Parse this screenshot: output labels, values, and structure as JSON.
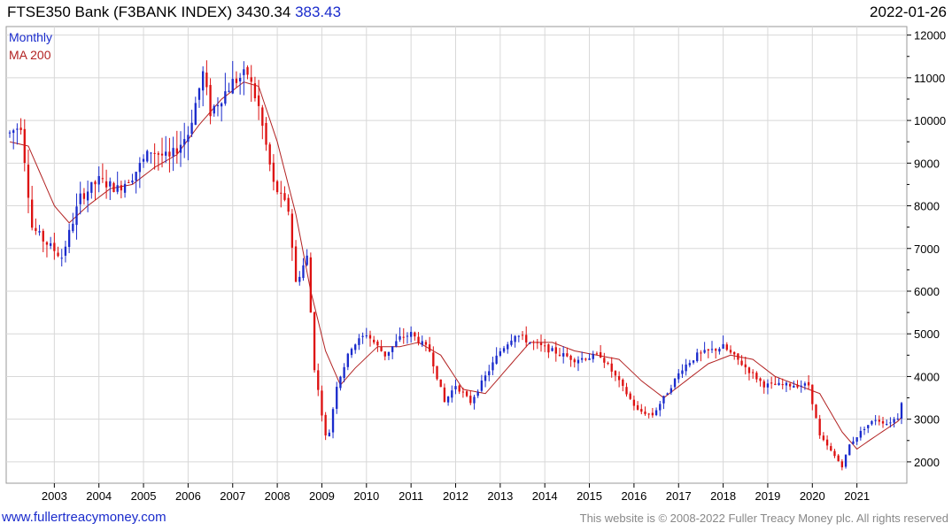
{
  "header": {
    "title": "FTSE350 Bank (F3BANK INDEX)",
    "last": "3430.34",
    "change": "383.43",
    "date": "2022-01-26"
  },
  "legend": {
    "period": "Monthly",
    "ma": "MA 200"
  },
  "footer": {
    "link": "www.fullertreacymoney.com",
    "copyright": "This website is © 2008-2022 Fuller Treacy Money plc. All rights reserved"
  },
  "colors": {
    "up": "#1a2bcc",
    "down": "#dd1111",
    "ma": "#b22222",
    "grid": "#d8d8d8"
  },
  "chart_data": {
    "type": "candlestick",
    "x_tick_labels": [
      "2003",
      "2004",
      "2005",
      "2006",
      "2007",
      "2008",
      "2009",
      "2010",
      "2011",
      "2012",
      "2013",
      "2014",
      "2015",
      "2016",
      "2017",
      "2018",
      "2019",
      "2020",
      "2021"
    ],
    "y_tick_labels": [
      "2000",
      "3000",
      "4000",
      "5000",
      "6000",
      "7000",
      "8000",
      "9000",
      "10000",
      "11000",
      "12000"
    ],
    "ylim": [
      1500,
      12200
    ],
    "xlim": [
      "2002-01",
      "2022-01"
    ],
    "grid": true,
    "price_anchors": [
      {
        "date": "2002-01",
        "value": 9700
      },
      {
        "date": "2002-04",
        "value": 9900
      },
      {
        "date": "2002-07",
        "value": 7500
      },
      {
        "date": "2002-10",
        "value": 7200
      },
      {
        "date": "2003-03",
        "value": 6800
      },
      {
        "date": "2003-08",
        "value": 8200
      },
      {
        "date": "2004-01",
        "value": 8600
      },
      {
        "date": "2004-06",
        "value": 8400
      },
      {
        "date": "2004-10",
        "value": 8700
      },
      {
        "date": "2005-03",
        "value": 9300
      },
      {
        "date": "2005-08",
        "value": 9100
      },
      {
        "date": "2006-01",
        "value": 9700
      },
      {
        "date": "2006-05",
        "value": 11100
      },
      {
        "date": "2006-07",
        "value": 10200
      },
      {
        "date": "2007-01",
        "value": 10900
      },
      {
        "date": "2007-05",
        "value": 11100
      },
      {
        "date": "2007-08",
        "value": 10300
      },
      {
        "date": "2007-12",
        "value": 8500
      },
      {
        "date": "2008-04",
        "value": 7900
      },
      {
        "date": "2008-06",
        "value": 6200
      },
      {
        "date": "2008-09",
        "value": 6800
      },
      {
        "date": "2008-11",
        "value": 4200
      },
      {
        "date": "2009-02",
        "value": 2600
      },
      {
        "date": "2009-03",
        "value": 2700
      },
      {
        "date": "2009-05",
        "value": 3800
      },
      {
        "date": "2009-09",
        "value": 4700
      },
      {
        "date": "2010-01",
        "value": 5000
      },
      {
        "date": "2010-06",
        "value": 4500
      },
      {
        "date": "2010-10",
        "value": 4900
      },
      {
        "date": "2011-01",
        "value": 5000
      },
      {
        "date": "2011-06",
        "value": 4600
      },
      {
        "date": "2011-10",
        "value": 3400
      },
      {
        "date": "2012-01",
        "value": 3800
      },
      {
        "date": "2012-05",
        "value": 3400
      },
      {
        "date": "2012-09",
        "value": 4000
      },
      {
        "date": "2013-01",
        "value": 4600
      },
      {
        "date": "2013-05",
        "value": 5000
      },
      {
        "date": "2013-09",
        "value": 4800
      },
      {
        "date": "2014-03",
        "value": 4600
      },
      {
        "date": "2014-09",
        "value": 4400
      },
      {
        "date": "2015-04",
        "value": 4500
      },
      {
        "date": "2015-08",
        "value": 4000
      },
      {
        "date": "2016-02",
        "value": 3200
      },
      {
        "date": "2016-06",
        "value": 3100
      },
      {
        "date": "2016-09",
        "value": 3500
      },
      {
        "date": "2017-02",
        "value": 4200
      },
      {
        "date": "2017-06",
        "value": 4500
      },
      {
        "date": "2018-01",
        "value": 4700
      },
      {
        "date": "2018-06",
        "value": 4300
      },
      {
        "date": "2018-12",
        "value": 3800
      },
      {
        "date": "2019-06",
        "value": 3800
      },
      {
        "date": "2019-12",
        "value": 3800
      },
      {
        "date": "2020-03",
        "value": 2600
      },
      {
        "date": "2020-09",
        "value": 1900
      },
      {
        "date": "2020-11",
        "value": 2400
      },
      {
        "date": "2021-03",
        "value": 2800
      },
      {
        "date": "2021-06",
        "value": 3000
      },
      {
        "date": "2021-09",
        "value": 2900
      },
      {
        "date": "2021-12",
        "value": 3050
      },
      {
        "date": "2022-01",
        "value": 3430
      }
    ],
    "ma200_anchors": [
      {
        "date": "2002-01",
        "value": 9500
      },
      {
        "date": "2002-06",
        "value": 9400
      },
      {
        "date": "2003-01",
        "value": 8000
      },
      {
        "date": "2003-05",
        "value": 7600
      },
      {
        "date": "2003-10",
        "value": 8000
      },
      {
        "date": "2004-04",
        "value": 8400
      },
      {
        "date": "2004-10",
        "value": 8500
      },
      {
        "date": "2005-04",
        "value": 8900
      },
      {
        "date": "2005-10",
        "value": 9200
      },
      {
        "date": "2006-04",
        "value": 9900
      },
      {
        "date": "2006-10",
        "value": 10500
      },
      {
        "date": "2007-04",
        "value": 10900
      },
      {
        "date": "2007-08",
        "value": 10800
      },
      {
        "date": "2008-01",
        "value": 9500
      },
      {
        "date": "2008-06",
        "value": 7800
      },
      {
        "date": "2008-10",
        "value": 6000
      },
      {
        "date": "2009-02",
        "value": 4600
      },
      {
        "date": "2009-06",
        "value": 3800
      },
      {
        "date": "2009-10",
        "value": 4200
      },
      {
        "date": "2010-04",
        "value": 4700
      },
      {
        "date": "2010-10",
        "value": 4700
      },
      {
        "date": "2011-03",
        "value": 4800
      },
      {
        "date": "2011-09",
        "value": 4500
      },
      {
        "date": "2012-03",
        "value": 3700
      },
      {
        "date": "2012-09",
        "value": 3600
      },
      {
        "date": "2013-03",
        "value": 4200
      },
      {
        "date": "2013-09",
        "value": 4800
      },
      {
        "date": "2014-03",
        "value": 4800
      },
      {
        "date": "2014-09",
        "value": 4600
      },
      {
        "date": "2015-03",
        "value": 4500
      },
      {
        "date": "2015-09",
        "value": 4400
      },
      {
        "date": "2016-03",
        "value": 3900
      },
      {
        "date": "2016-09",
        "value": 3500
      },
      {
        "date": "2017-03",
        "value": 3900
      },
      {
        "date": "2017-09",
        "value": 4300
      },
      {
        "date": "2018-03",
        "value": 4500
      },
      {
        "date": "2018-09",
        "value": 4400
      },
      {
        "date": "2019-03",
        "value": 4000
      },
      {
        "date": "2019-09",
        "value": 3800
      },
      {
        "date": "2020-03",
        "value": 3600
      },
      {
        "date": "2020-09",
        "value": 2700
      },
      {
        "date": "2021-01",
        "value": 2300
      },
      {
        "date": "2021-06",
        "value": 2600
      },
      {
        "date": "2021-12",
        "value": 2950
      },
      {
        "date": "2022-01",
        "value": 3050
      }
    ]
  }
}
